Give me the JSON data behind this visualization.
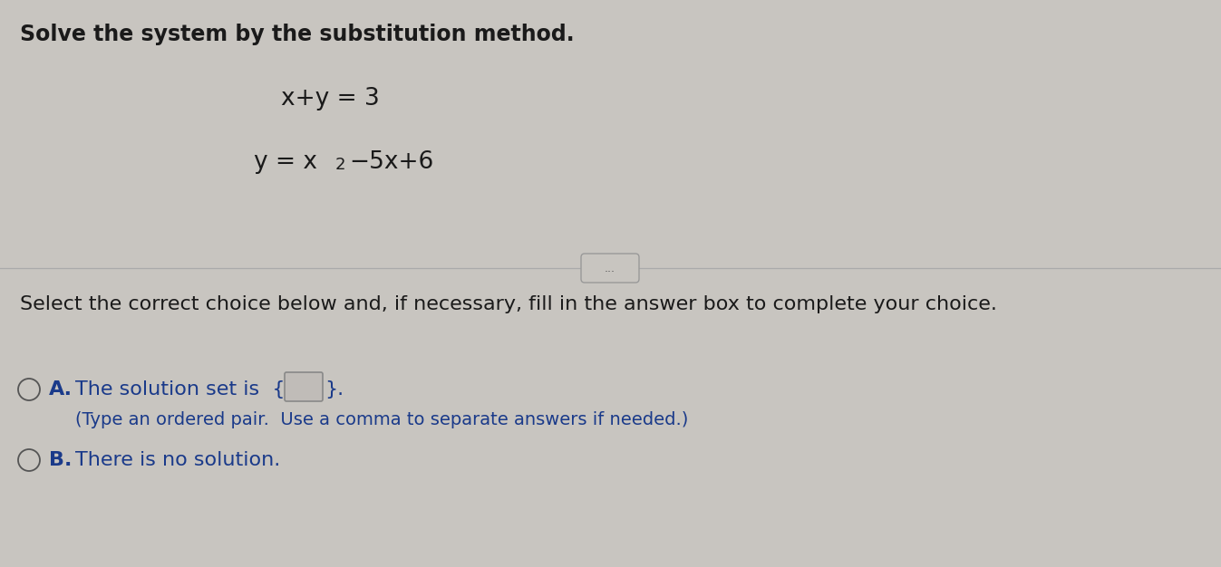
{
  "background_color": "#c8c5c0",
  "title_text": "Solve the system by the substitution method.",
  "eq1": "x+y = 3",
  "divider_color": "#aaaaaa",
  "dots_text": "...",
  "select_text": "Select the correct choice below and, if necessary, fill in the answer box to complete your choice.",
  "choice_a_label": "A.",
  "choice_a_main": "The solution set is  {",
  "choice_a_close": "}.",
  "choice_a_sub": "(Type an ordered pair.  Use a comma to separate answers if needed.)",
  "choice_b_label": "B.",
  "choice_b_text": "There is no solution.",
  "font_color": "#1a1a1a",
  "choice_color": "#1a3a8a",
  "title_fontsize": 17,
  "eq_fontsize": 19,
  "select_fontsize": 16,
  "choice_fontsize": 16,
  "sub_fontsize": 14,
  "radio_color": "#555555",
  "answer_box_fill": "#c0bcb8",
  "answer_box_edge": "#888888"
}
